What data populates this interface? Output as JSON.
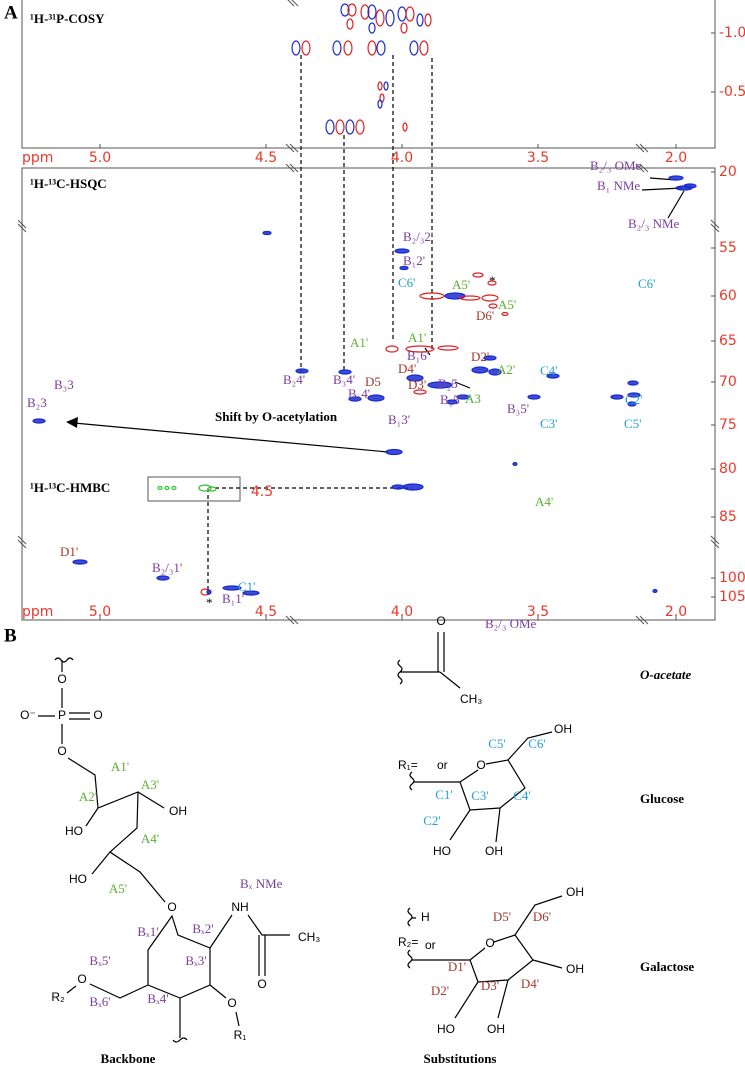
{
  "panel_a": {
    "label": "A",
    "cosy_title": "¹H-³¹P-COSY",
    "hsqc_title": "¹H-¹³C-HSQC",
    "hmbc_title": "¹H-¹³C-HMBC",
    "annotation": "Shift by O-acetylation",
    "x_axis_top": {
      "label": "ppm",
      "ticks": [
        "5.0",
        "4.5",
        "4.0",
        "3.5",
        "2.0"
      ]
    },
    "x_axis_bottom": {
      "label": "ppm",
      "ticks": [
        "5.0",
        "4.5",
        "4.0",
        "3.5",
        "2.0"
      ]
    },
    "hmbc_tick": "4.5",
    "cosy_y_ticks": [
      "-1.0",
      "-0.5"
    ],
    "hsqc_y_ticks": [
      "20",
      "55",
      "60",
      "65",
      "70",
      "75",
      "80",
      "85",
      "100",
      "105"
    ],
    "peak_labels": [
      "B₂/₃ OMe",
      "B₁ NMe",
      "B₂/₃ NMe",
      "B₂/₃2'",
      "B₁2'",
      "C6'",
      "*",
      "C6'",
      "A5'",
      "A5'",
      "D6'",
      "B₁6'",
      "A1'",
      "A1'",
      "D2'",
      "D4'",
      "A2'",
      "D5",
      "D3'",
      "A3",
      "C4'",
      "C2'",
      "B₂4'",
      "B₃4'",
      "B₁4'",
      "B₂5",
      "B₁5'",
      "B₃5'",
      "C3'",
      "C5'",
      "B₁3'",
      "B₃3",
      "B₂3",
      "A4'",
      "D1'",
      "B₂/₃1'",
      "*",
      "B₁1'",
      "C1'"
    ]
  },
  "panel_b": {
    "label": "B",
    "backbone": {
      "atoms": [
        "O",
        "O⁻",
        "P",
        "O",
        "O",
        "HO",
        "OH",
        "HO",
        "O",
        "NH",
        "O",
        "CH₃",
        "O",
        "R₂",
        "O",
        "R₁"
      ],
      "sugar_labels": [
        "A1'",
        "A2'",
        "A3'",
        "A4'",
        "A5'",
        "Bₓ1'",
        "Bₓ2'",
        "Bₓ3'",
        "Bₓ4'",
        "Bₓ5'",
        "Bₓ6'"
      ],
      "nme_label": "Bₓ NMe",
      "caption": "Backbone"
    },
    "acetate": {
      "atoms": [
        "O",
        "CH₃"
      ],
      "label": "B₂/₃ OMe",
      "name": "O-acetate"
    },
    "r1": {
      "prefix": "R₁=",
      "or": "or",
      "atoms": [
        "O",
        "OH",
        "HO",
        "OH"
      ],
      "labels": [
        "C1'",
        "C2'",
        "C3'",
        "C4'",
        "C5'",
        "C6'"
      ],
      "name": "Glucose"
    },
    "r2": {
      "prefix": "R₂=",
      "h": "H",
      "or": "or",
      "atoms": [
        "O",
        "OH",
        "OH",
        "HO",
        "OH"
      ],
      "labels": [
        "D1'",
        "D2'",
        "D3'",
        "D4'",
        "D5'",
        "D6'"
      ],
      "name": "Galactose"
    },
    "caption": "Substitutions"
  }
}
